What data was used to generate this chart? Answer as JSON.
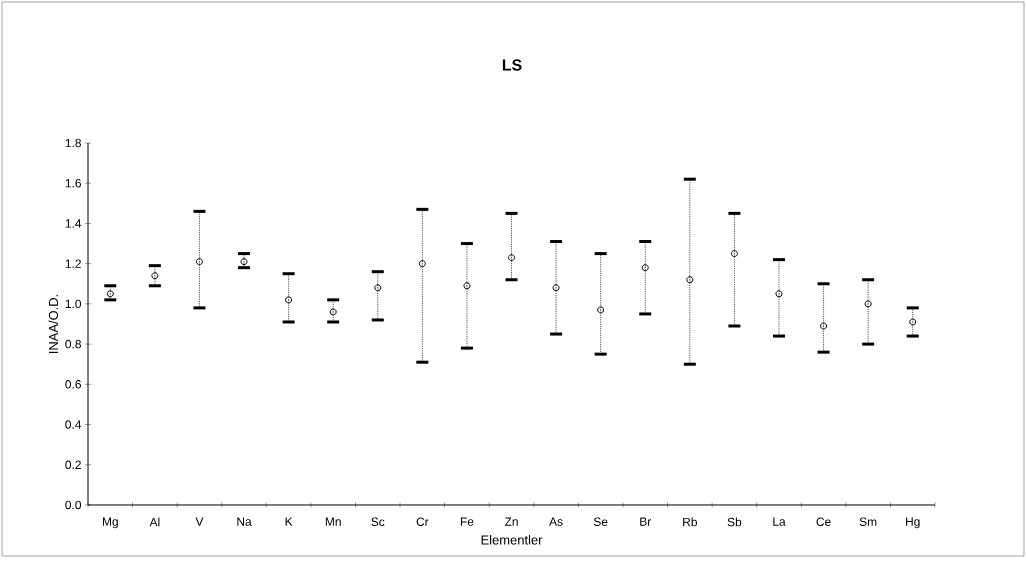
{
  "chart_data": {
    "type": "scatter",
    "title": "LS",
    "xlabel": "Elementler",
    "ylabel": "INAA/O.D.",
    "categories": [
      "Mg",
      "Al",
      "V",
      "Na",
      "K",
      "Mn",
      "Sc",
      "Cr",
      "Fe",
      "Zn",
      "As",
      "Se",
      "Br",
      "Rb",
      "Sb",
      "La",
      "Ce",
      "Sm",
      "Hg"
    ],
    "values": [
      1.05,
      1.14,
      1.21,
      1.21,
      1.02,
      0.96,
      1.08,
      1.2,
      1.09,
      1.23,
      1.08,
      0.97,
      1.18,
      1.12,
      1.25,
      1.05,
      0.89,
      1.0,
      0.91
    ],
    "errors": [
      [
        1.02,
        1.09
      ],
      [
        1.09,
        1.19
      ],
      [
        0.98,
        1.46
      ],
      [
        1.18,
        1.25
      ],
      [
        0.91,
        1.15
      ],
      [
        0.91,
        1.02
      ],
      [
        0.92,
        1.16
      ],
      [
        0.71,
        1.47
      ],
      [
        0.78,
        1.3
      ],
      [
        1.12,
        1.45
      ],
      [
        0.85,
        1.31
      ],
      [
        0.75,
        1.25
      ],
      [
        0.95,
        1.31
      ],
      [
        0.7,
        1.62
      ],
      [
        0.89,
        1.45
      ],
      [
        0.84,
        1.22
      ],
      [
        0.76,
        1.1
      ],
      [
        0.8,
        1.12
      ],
      [
        0.84,
        0.98
      ]
    ],
    "color": "#000000",
    "marker": "circle",
    "ylim": [
      0,
      1.8
    ],
    "yticks": [
      {
        "value": 0,
        "label": "0.0"
      },
      {
        "value": 0.2,
        "label": "0.2"
      },
      {
        "value": 0.4,
        "label": "0.4"
      },
      {
        "value": 0.6,
        "label": "0.6"
      },
      {
        "value": 0.8,
        "label": "0.8"
      },
      {
        "value": 1.0,
        "label": "1.0"
      },
      {
        "value": 1.2,
        "label": "1.2"
      },
      {
        "value": 1.4,
        "label": "1.4"
      },
      {
        "value": 1.6,
        "label": "1.6"
      },
      {
        "value": 1.8,
        "label": "1.8"
      }
    ],
    "grid": false
  }
}
